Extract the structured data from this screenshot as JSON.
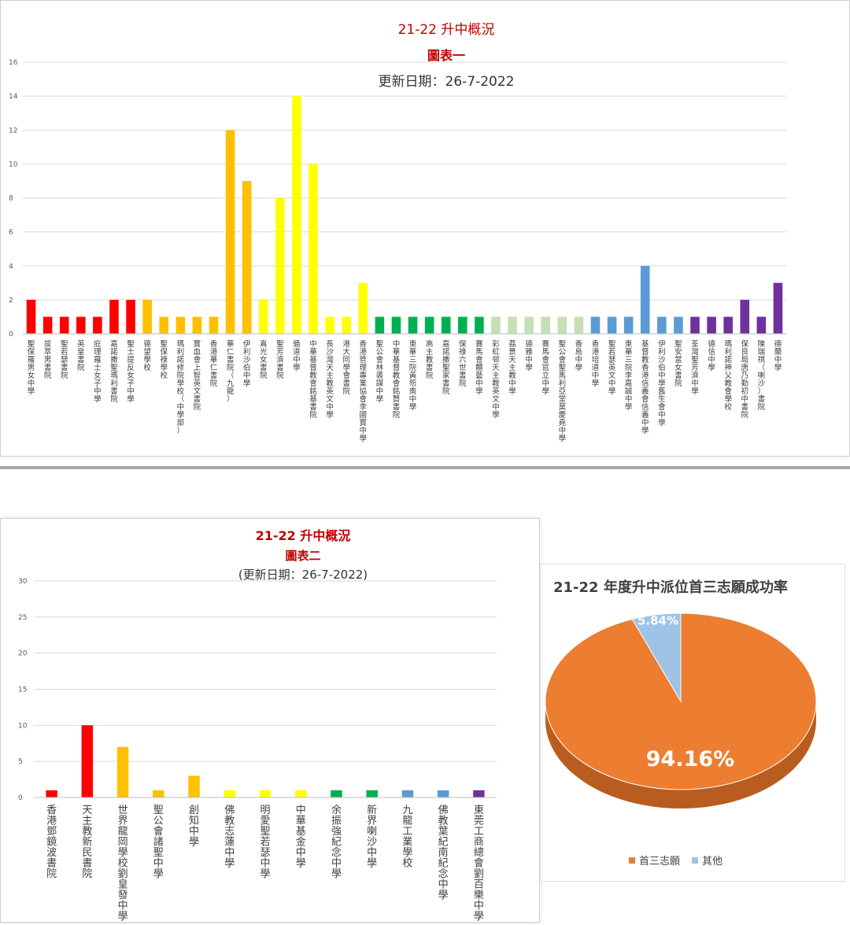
{
  "chart_data": [
    {
      "type": "bar",
      "title": "21-22 升中概況",
      "subtitle": "圖表一",
      "update_text": "更新日期：26-7-2022",
      "ylim": [
        0,
        16
      ],
      "yticks": [
        0,
        2,
        4,
        6,
        8,
        10,
        12,
        14,
        16
      ],
      "grid": true,
      "categories": [
        "聖保羅男女中學",
        "拔萃男書院",
        "聖若瑟書院",
        "英皇書院",
        "庇理羅士女子中學",
        "嘉諾撒聖瑪利書院",
        "聖士提反女子中學",
        "德望學校",
        "聖保祿學校",
        "瑪利諾修院學校（中學部）",
        "寶血會上智英文書院",
        "香港華仁書院",
        "華仁書院（九龍）",
        "伊利沙伯中學",
        "真光女書院",
        "聖芳濟書院",
        "循道中學",
        "中華基督教會銘基書院",
        "長沙灣天主教英文中學",
        "港大同學會書院",
        "香港管理專業協會李國寶中學",
        "聖公會林裘謀中學",
        "中華基督教會銘賢書院",
        "東華三院黃笏南中學",
        "高主教書院",
        "嘉諾撒聖家書院",
        "保祿六世書院",
        "賽馬會體藝中學",
        "彩虹邨天主教英文中學",
        "荔景天主教中學",
        "德雅中學",
        "賽馬會官立中學",
        "聖公會聖馬利亞堂莫慶堯中學",
        "香島中學",
        "香港培道中學",
        "聖若瑟英文中學",
        "東華三院李嘉誠中學",
        "基督教香港信義會信義中學",
        "伊利沙伯中學舊生會中學",
        "聖安當女書院",
        "荃灣聖芳濟中學",
        "德信中學",
        "瑪利諾神父教會學校",
        "保良局唐乃勤初中書院",
        "陳瑞祺（喇沙）書院",
        "德蘭中學"
      ],
      "values": [
        2,
        1,
        1,
        1,
        1,
        2,
        2,
        2,
        1,
        1,
        1,
        1,
        12,
        9,
        2,
        8,
        14,
        10,
        1,
        1,
        3,
        1,
        1,
        1,
        1,
        1,
        1,
        1,
        1,
        1,
        1,
        1,
        1,
        1,
        1,
        1,
        1,
        4,
        1,
        1,
        1,
        1,
        1,
        2,
        1,
        3
      ],
      "colors": [
        "#ff0000",
        "#ff0000",
        "#ff0000",
        "#ff0000",
        "#ff0000",
        "#ff0000",
        "#ff0000",
        "#ffc000",
        "#ffc000",
        "#ffc000",
        "#ffc000",
        "#ffc000",
        "#ffc000",
        "#ffc000",
        "#ffff00",
        "#ffff00",
        "#ffff00",
        "#ffff00",
        "#ffff00",
        "#ffff00",
        "#ffff00",
        "#00b050",
        "#00b050",
        "#00b050",
        "#00b050",
        "#00b050",
        "#00b050",
        "#00b050",
        "#c5e0b4",
        "#c5e0b4",
        "#c5e0b4",
        "#c5e0b4",
        "#c5e0b4",
        "#c5e0b4",
        "#5b9bd5",
        "#5b9bd5",
        "#5b9bd5",
        "#5b9bd5",
        "#5b9bd5",
        "#5b9bd5",
        "#7030a0",
        "#7030a0",
        "#7030a0",
        "#7030a0",
        "#7030a0",
        "#7030a0"
      ]
    },
    {
      "type": "bar",
      "title": "21-22 升中概況",
      "subtitle": "圖表二",
      "update_text": "(更新日期：26-7-2022)",
      "ylim": [
        0,
        30
      ],
      "yticks": [
        0,
        5,
        10,
        15,
        20,
        25,
        30
      ],
      "grid": true,
      "categories": [
        "香港鄧鏡波書院",
        "天主教新民書院",
        "世界龍岡學校劉皇發中學",
        "聖公會諸聖中學",
        "創知中學",
        "佛教志蓮中學",
        "明愛聖若瑟中學",
        "中華基金中學",
        "余振強紀念中學",
        "新界喇沙中學",
        "九龍工業學校",
        "佛教葉紀南紀念中學",
        "東莞工商總會劉百樂中學"
      ],
      "values": [
        1,
        10,
        7,
        1,
        3,
        1,
        1,
        1,
        1,
        1,
        1,
        1,
        1
      ],
      "colors": [
        "#ff0000",
        "#ff0000",
        "#ffc000",
        "#ffc000",
        "#ffc000",
        "#ffff00",
        "#ffff00",
        "#ffff00",
        "#00b050",
        "#00b050",
        "#5b9bd5",
        "#5b9bd5",
        "#7030a0"
      ]
    },
    {
      "type": "pie",
      "title": "21-22 年度升中派位首三志願成功率",
      "slices": [
        {
          "label": "首三志願",
          "value": 94.16,
          "display": "94.16%",
          "color": "#ed7d31"
        },
        {
          "label": "其他",
          "value": 5.84,
          "display": "5.84%",
          "color": "#9dc3e6"
        }
      ],
      "legend": "bottom"
    }
  ]
}
